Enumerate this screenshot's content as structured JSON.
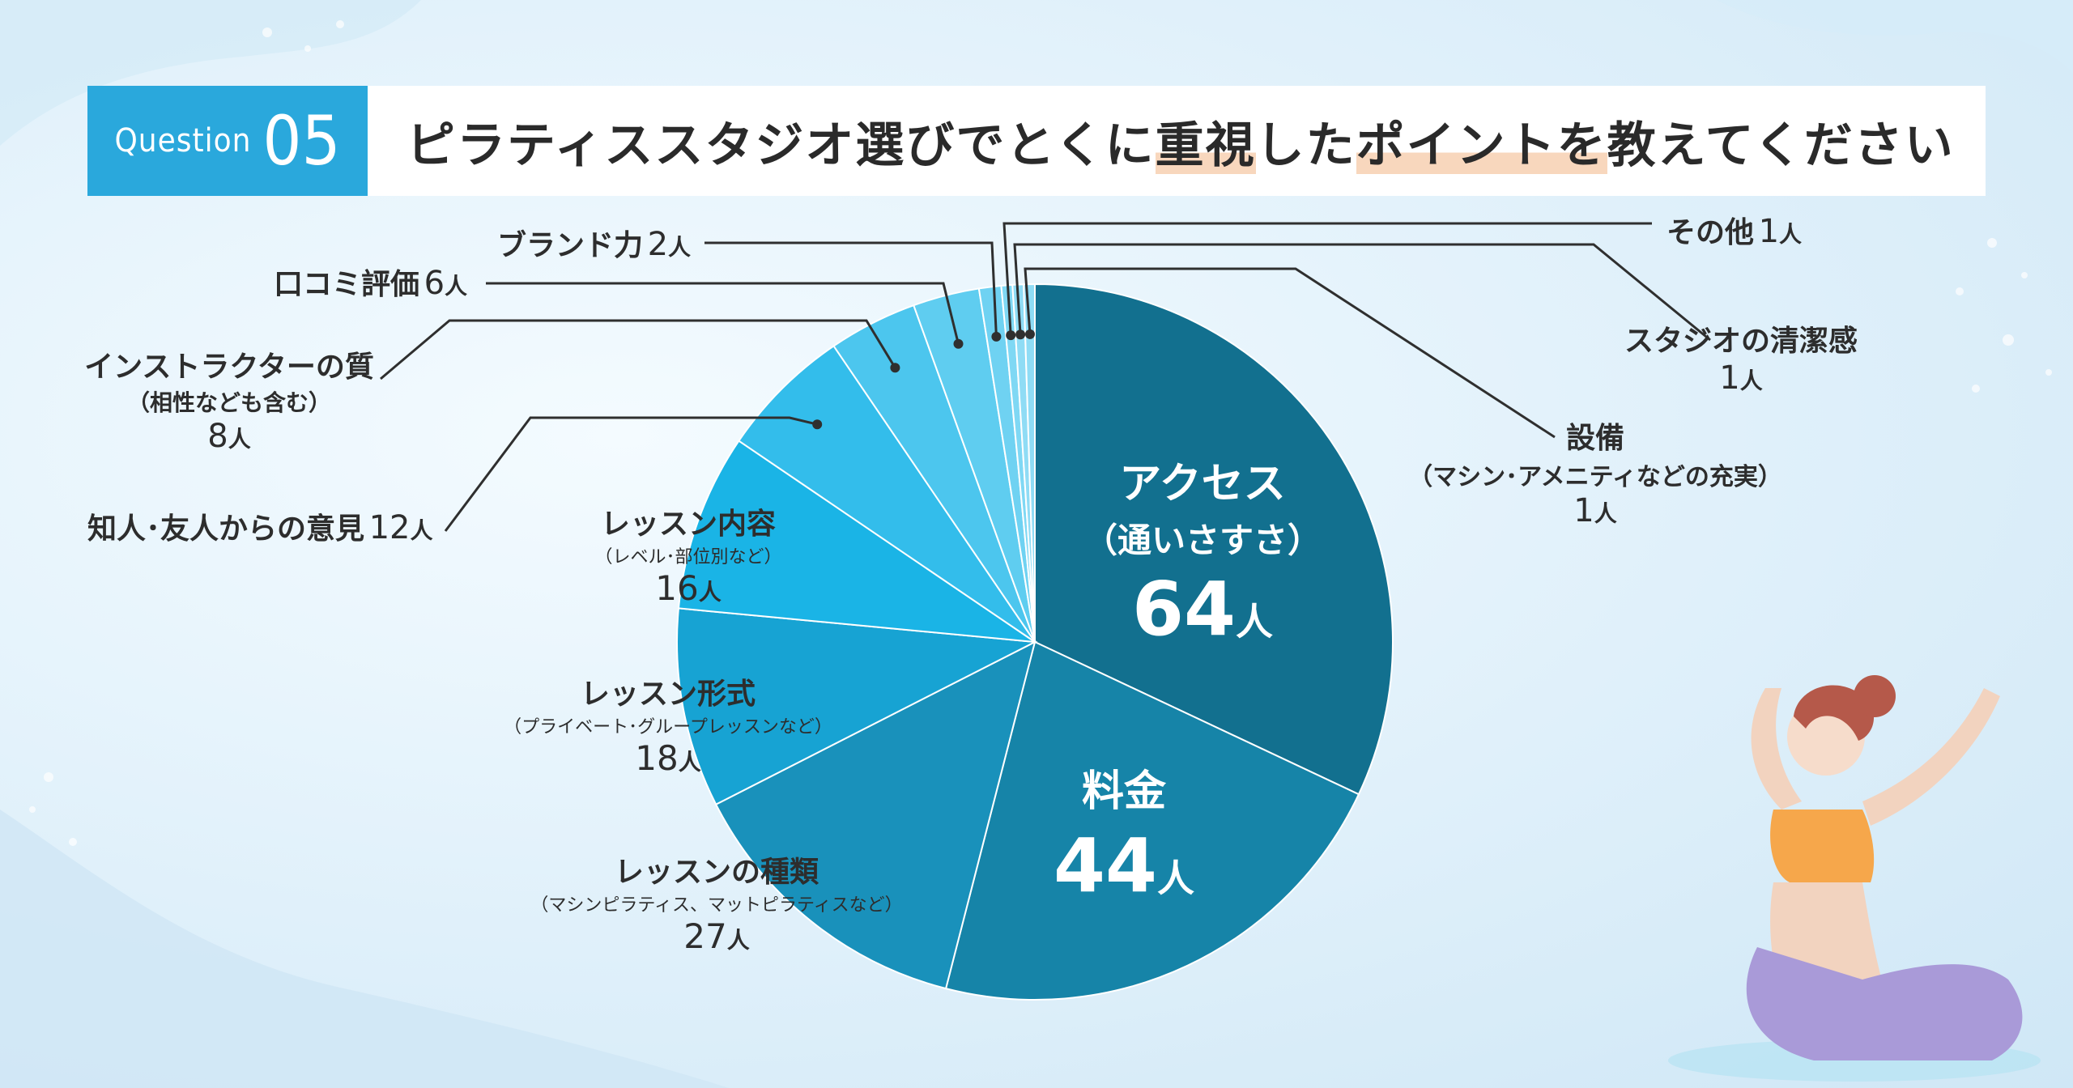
{
  "header": {
    "question_word": "Question",
    "question_number": "05",
    "title_parts": [
      "ピラティススタジオ選びでとくに",
      "重視",
      "した",
      "ポイント",
      "を",
      "教えてください"
    ]
  },
  "colors": {
    "accent": "#2aa8dc",
    "slices": [
      "#12708f",
      "#1684a8",
      "#1991bb",
      "#17a3d3",
      "#1ab4e6",
      "#33bdeb",
      "#4cc6ee",
      "#5fcdf0",
      "#6fd2f2",
      "#7fd8f4",
      "#8fdcf5"
    ]
  },
  "chart_data": {
    "type": "pie",
    "title": "ピラティススタジオ選びでとくに重視したポイントを教えてください",
    "unit": "人",
    "slices": [
      {
        "label": "アクセス",
        "sub": "（通いさすさ）",
        "value": 64
      },
      {
        "label": "料金",
        "sub": "",
        "value": 44
      },
      {
        "label": "レッスンの種類",
        "sub": "（マシンピラティス、マットピラティスなど）",
        "value": 27
      },
      {
        "label": "レッスン形式",
        "sub": "（プライベート･グループレッスンなど）",
        "value": 18
      },
      {
        "label": "レッスン内容",
        "sub": "（レベル･部位別など）",
        "value": 16
      },
      {
        "label": "知人･友人からの意見",
        "sub": "",
        "value": 12
      },
      {
        "label": "インストラクターの質",
        "sub": "（相性なども含む）",
        "value": 8
      },
      {
        "label": "口コミ評価",
        "sub": "",
        "value": 6
      },
      {
        "label": "ブランド力",
        "sub": "",
        "value": 2
      },
      {
        "label": "その他",
        "sub": "",
        "value": 1
      },
      {
        "label": "スタジオの清潔感",
        "sub": "",
        "value": 1
      },
      {
        "label": "設備",
        "sub": "（マシン･アメニティなどの充実）",
        "value": 1
      }
    ]
  }
}
